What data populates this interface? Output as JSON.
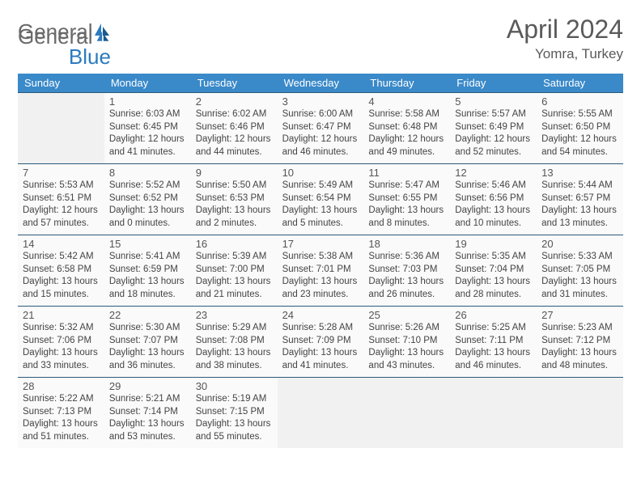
{
  "logo": {
    "word1": "General",
    "word2": "Blue"
  },
  "title": "April 2024",
  "location": "Yomra, Turkey",
  "colors": {
    "header_bg": "#3a89c9",
    "border": "#2d5a7a",
    "logo_gray": "#6a6a6a",
    "logo_blue": "#2d7bbf",
    "text": "#444444"
  },
  "day_headers": [
    "Sunday",
    "Monday",
    "Tuesday",
    "Wednesday",
    "Thursday",
    "Friday",
    "Saturday"
  ],
  "start_offset": 1,
  "days": [
    {
      "n": 1,
      "sunrise": "6:03 AM",
      "sunset": "6:45 PM",
      "daylight": "12 hours and 41 minutes."
    },
    {
      "n": 2,
      "sunrise": "6:02 AM",
      "sunset": "6:46 PM",
      "daylight": "12 hours and 44 minutes."
    },
    {
      "n": 3,
      "sunrise": "6:00 AM",
      "sunset": "6:47 PM",
      "daylight": "12 hours and 46 minutes."
    },
    {
      "n": 4,
      "sunrise": "5:58 AM",
      "sunset": "6:48 PM",
      "daylight": "12 hours and 49 minutes."
    },
    {
      "n": 5,
      "sunrise": "5:57 AM",
      "sunset": "6:49 PM",
      "daylight": "12 hours and 52 minutes."
    },
    {
      "n": 6,
      "sunrise": "5:55 AM",
      "sunset": "6:50 PM",
      "daylight": "12 hours and 54 minutes."
    },
    {
      "n": 7,
      "sunrise": "5:53 AM",
      "sunset": "6:51 PM",
      "daylight": "12 hours and 57 minutes."
    },
    {
      "n": 8,
      "sunrise": "5:52 AM",
      "sunset": "6:52 PM",
      "daylight": "13 hours and 0 minutes."
    },
    {
      "n": 9,
      "sunrise": "5:50 AM",
      "sunset": "6:53 PM",
      "daylight": "13 hours and 2 minutes."
    },
    {
      "n": 10,
      "sunrise": "5:49 AM",
      "sunset": "6:54 PM",
      "daylight": "13 hours and 5 minutes."
    },
    {
      "n": 11,
      "sunrise": "5:47 AM",
      "sunset": "6:55 PM",
      "daylight": "13 hours and 8 minutes."
    },
    {
      "n": 12,
      "sunrise": "5:46 AM",
      "sunset": "6:56 PM",
      "daylight": "13 hours and 10 minutes."
    },
    {
      "n": 13,
      "sunrise": "5:44 AM",
      "sunset": "6:57 PM",
      "daylight": "13 hours and 13 minutes."
    },
    {
      "n": 14,
      "sunrise": "5:42 AM",
      "sunset": "6:58 PM",
      "daylight": "13 hours and 15 minutes."
    },
    {
      "n": 15,
      "sunrise": "5:41 AM",
      "sunset": "6:59 PM",
      "daylight": "13 hours and 18 minutes."
    },
    {
      "n": 16,
      "sunrise": "5:39 AM",
      "sunset": "7:00 PM",
      "daylight": "13 hours and 21 minutes."
    },
    {
      "n": 17,
      "sunrise": "5:38 AM",
      "sunset": "7:01 PM",
      "daylight": "13 hours and 23 minutes."
    },
    {
      "n": 18,
      "sunrise": "5:36 AM",
      "sunset": "7:03 PM",
      "daylight": "13 hours and 26 minutes."
    },
    {
      "n": 19,
      "sunrise": "5:35 AM",
      "sunset": "7:04 PM",
      "daylight": "13 hours and 28 minutes."
    },
    {
      "n": 20,
      "sunrise": "5:33 AM",
      "sunset": "7:05 PM",
      "daylight": "13 hours and 31 minutes."
    },
    {
      "n": 21,
      "sunrise": "5:32 AM",
      "sunset": "7:06 PM",
      "daylight": "13 hours and 33 minutes."
    },
    {
      "n": 22,
      "sunrise": "5:30 AM",
      "sunset": "7:07 PM",
      "daylight": "13 hours and 36 minutes."
    },
    {
      "n": 23,
      "sunrise": "5:29 AM",
      "sunset": "7:08 PM",
      "daylight": "13 hours and 38 minutes."
    },
    {
      "n": 24,
      "sunrise": "5:28 AM",
      "sunset": "7:09 PM",
      "daylight": "13 hours and 41 minutes."
    },
    {
      "n": 25,
      "sunrise": "5:26 AM",
      "sunset": "7:10 PM",
      "daylight": "13 hours and 43 minutes."
    },
    {
      "n": 26,
      "sunrise": "5:25 AM",
      "sunset": "7:11 PM",
      "daylight": "13 hours and 46 minutes."
    },
    {
      "n": 27,
      "sunrise": "5:23 AM",
      "sunset": "7:12 PM",
      "daylight": "13 hours and 48 minutes."
    },
    {
      "n": 28,
      "sunrise": "5:22 AM",
      "sunset": "7:13 PM",
      "daylight": "13 hours and 51 minutes."
    },
    {
      "n": 29,
      "sunrise": "5:21 AM",
      "sunset": "7:14 PM",
      "daylight": "13 hours and 53 minutes."
    },
    {
      "n": 30,
      "sunrise": "5:19 AM",
      "sunset": "7:15 PM",
      "daylight": "13 hours and 55 minutes."
    }
  ],
  "labels": {
    "sunrise": "Sunrise:",
    "sunset": "Sunset:",
    "daylight": "Daylight:"
  }
}
